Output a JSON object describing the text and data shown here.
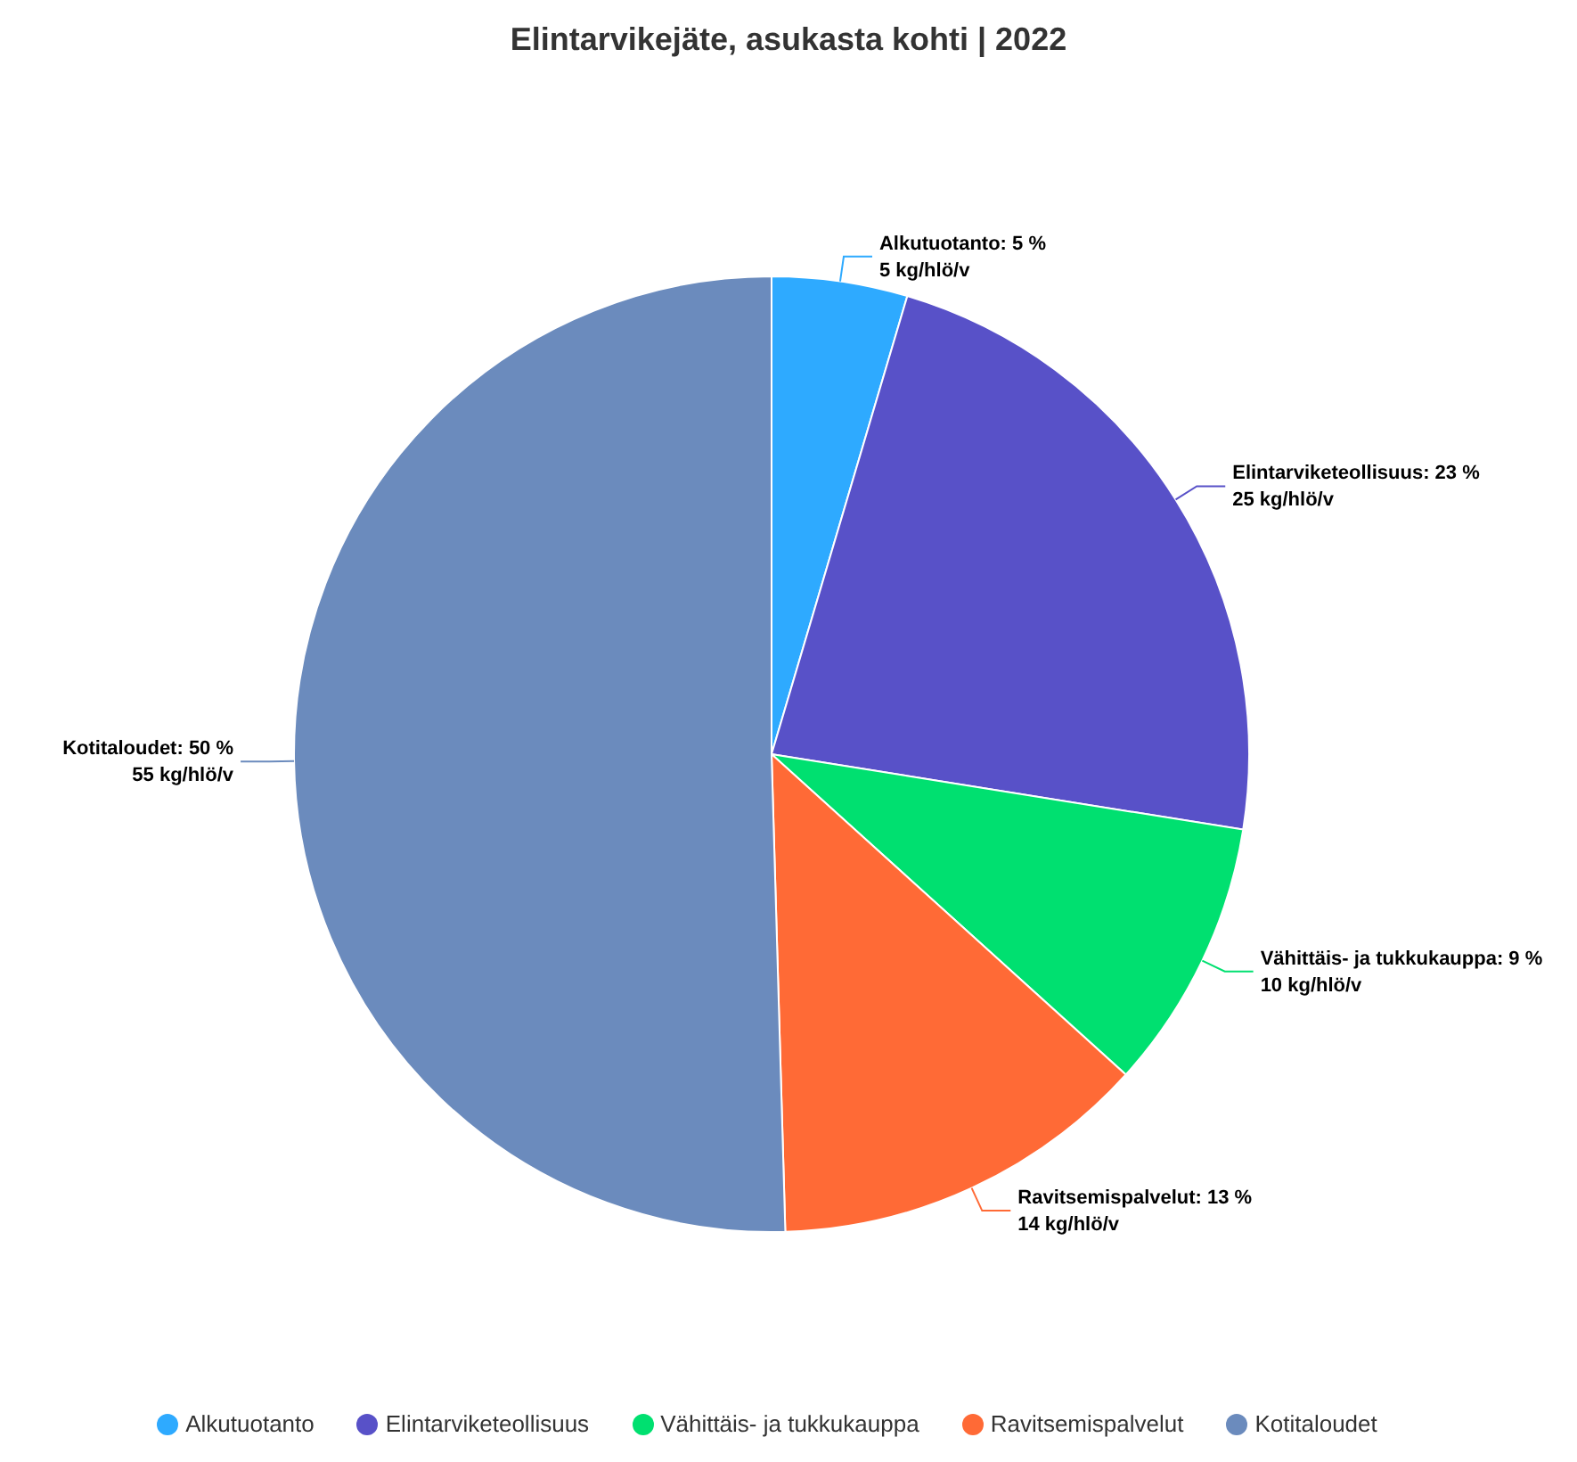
{
  "chart_data": {
    "type": "pie",
    "title": "Elintarvikejäte, asukasta kohti | 2022",
    "categories": [
      "Alkutuotanto",
      "Elintarviketeollisuus",
      "Vähittäis- ja tukkukauppa",
      "Ravitsemispalvelut",
      "Kotitaloudet"
    ],
    "values": [
      5,
      25,
      10,
      14,
      55
    ],
    "colors": [
      "#2eaaff",
      "#5851c8",
      "#00e070",
      "#ff6a36",
      "#6b8bbd"
    ],
    "value_labels": [
      "Alkutuotanto: 5 %\n5 kg/hlö/v",
      "Elintarviketeollisuus: 23 %\n25 kg/hlö/v",
      "Vähittäis- ja tukkukauppa: 9 %\n10 kg/hlö/v",
      "Ravitsemispalvelut: 13 %\n14 kg/hlö/v",
      "Kotitaloudet: 50 %\n55 kg/hlö/v"
    ],
    "legend": "bottom"
  }
}
